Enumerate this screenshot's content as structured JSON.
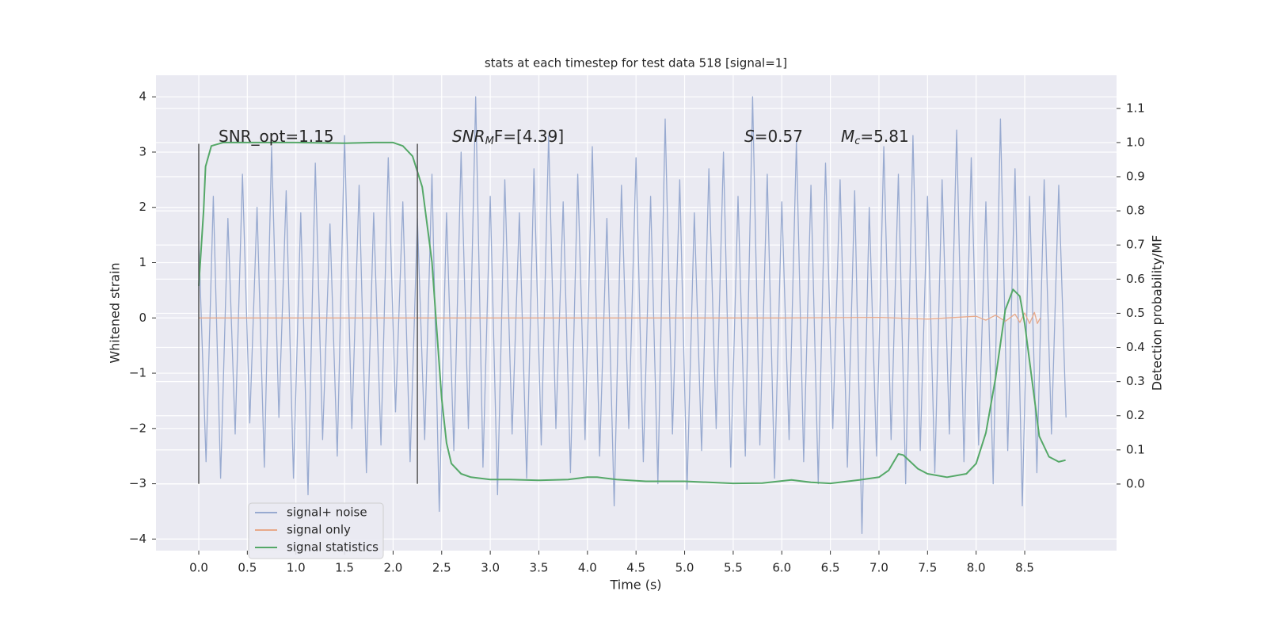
{
  "chart_data": {
    "type": "line",
    "title": "stats at each timestep for test data 518 [signal=1]",
    "xlabel": "Time (s)",
    "ylabel": "Whitened strain",
    "y2label": "Detection probability/MF",
    "xlim": [
      -0.44,
      9.445
    ],
    "ylim": [
      -4.21,
      4.39
    ],
    "y2lim": [
      -0.195,
      1.197
    ],
    "grid": true,
    "xticks": [
      {
        "value": 0,
        "label": "0.0"
      },
      {
        "value": 0.5,
        "label": "0.5"
      },
      {
        "value": 1,
        "label": "1.0"
      },
      {
        "value": 1.5,
        "label": "1.5"
      },
      {
        "value": 2,
        "label": "2.0"
      },
      {
        "value": 2.5,
        "label": "2.5"
      },
      {
        "value": 3,
        "label": "3.0"
      },
      {
        "value": 3.5,
        "label": "3.5"
      },
      {
        "value": 4,
        "label": "4.0"
      },
      {
        "value": 4.5,
        "label": "4.5"
      },
      {
        "value": 5,
        "label": "5.0"
      },
      {
        "value": 5.5,
        "label": "5.5"
      },
      {
        "value": 6,
        "label": "6.0"
      },
      {
        "value": 6.5,
        "label": "6.5"
      },
      {
        "value": 7,
        "label": "7.0"
      },
      {
        "value": 7.5,
        "label": "7.5"
      },
      {
        "value": 8,
        "label": "8.0"
      },
      {
        "value": 8.5,
        "label": "8.5"
      }
    ],
    "yticks": [
      {
        "value": -4,
        "label": "−4"
      },
      {
        "value": -3,
        "label": "−3"
      },
      {
        "value": -2,
        "label": "−2"
      },
      {
        "value": -1,
        "label": "−1"
      },
      0,
      1,
      2,
      3,
      4
    ],
    "y2ticks": [
      {
        "value": 0,
        "label": "0.0"
      },
      {
        "value": 0.1,
        "label": "0.1"
      },
      {
        "value": 0.2,
        "label": "0.2"
      },
      {
        "value": 0.3,
        "label": "0.3"
      },
      {
        "value": 0.4,
        "label": "0.4"
      },
      {
        "value": 0.5,
        "label": "0.5"
      },
      {
        "value": 0.6,
        "label": "0.6"
      },
      {
        "value": 0.7,
        "label": "0.7"
      },
      {
        "value": 0.8,
        "label": "0.8"
      },
      {
        "value": 0.9,
        "label": "0.9"
      },
      {
        "value": 1,
        "label": "1.0"
      },
      {
        "value": 1.1,
        "label": "1.1"
      }
    ],
    "series": [
      {
        "name": "signal+ noise",
        "color": "#98aad0",
        "x": [
          0,
          0.075,
          0.15,
          0.225,
          0.3,
          0.375,
          0.45,
          0.525,
          0.6,
          0.675,
          0.75,
          0.825,
          0.9,
          0.975,
          1.05,
          1.125,
          1.2,
          1.275,
          1.35,
          1.425,
          1.5,
          1.575,
          1.65,
          1.725,
          1.8,
          1.875,
          1.95,
          2.025,
          2.1,
          2.175,
          2.25,
          2.325,
          2.4,
          2.475,
          2.55,
          2.625,
          2.7,
          2.775,
          2.85,
          2.925,
          3,
          3.075,
          3.15,
          3.225,
          3.3,
          3.375,
          3.45,
          3.525,
          3.6,
          3.675,
          3.75,
          3.825,
          3.9,
          3.975,
          4.05,
          4.125,
          4.2,
          4.275,
          4.35,
          4.425,
          4.5,
          4.575,
          4.65,
          4.725,
          4.8,
          4.875,
          4.95,
          5.025,
          5.1,
          5.175,
          5.25,
          5.325,
          5.4,
          5.475,
          5.55,
          5.625,
          5.7,
          5.775,
          5.85,
          5.925,
          6,
          6.075,
          6.15,
          6.225,
          6.3,
          6.375,
          6.45,
          6.525,
          6.6,
          6.675,
          6.75,
          6.825,
          6.9,
          6.975,
          7.05,
          7.125,
          7.2,
          7.275,
          7.35,
          7.425,
          7.5,
          7.575,
          7.65,
          7.725,
          7.8,
          7.875,
          7.95,
          8.025,
          8.1,
          8.175,
          8.25,
          8.325,
          8.4,
          8.475,
          8.55,
          8.625,
          8.7,
          8.775,
          8.85,
          8.925
        ],
        "values": [
          1.4,
          -2.6,
          2.2,
          -2.9,
          1.8,
          -2.1,
          2.6,
          -1.9,
          2.0,
          -2.7,
          3.1,
          -1.8,
          2.3,
          -2.9,
          1.9,
          -3.2,
          2.8,
          -2.2,
          1.7,
          -2.5,
          3.3,
          -2.0,
          2.4,
          -2.8,
          1.9,
          -2.3,
          2.9,
          -1.7,
          2.1,
          -2.6,
          1.8,
          -2.2,
          2.6,
          -3.5,
          1.9,
          -2.4,
          3.0,
          -2.0,
          4.0,
          -2.7,
          2.2,
          -3.2,
          2.5,
          -2.1,
          1.9,
          -2.9,
          2.7,
          -2.3,
          3.3,
          -2.0,
          2.1,
          -2.8,
          2.6,
          -2.2,
          3.1,
          -2.5,
          1.8,
          -3.4,
          2.4,
          -2.0,
          2.9,
          -2.6,
          2.2,
          -3.0,
          3.6,
          -2.1,
          2.5,
          -3.1,
          1.9,
          -2.4,
          2.7,
          -2.0,
          3.0,
          -2.7,
          2.2,
          -2.5,
          4.0,
          -2.3,
          2.6,
          -2.9,
          2.1,
          -2.2,
          3.2,
          -2.6,
          2.4,
          -3.0,
          2.8,
          -2.0,
          2.5,
          -2.7,
          2.3,
          -3.9,
          2.0,
          -2.5,
          3.1,
          -2.2,
          2.6,
          -3.0,
          3.3,
          -2.4,
          2.2,
          -2.8,
          2.5,
          -2.1,
          3.4,
          -2.6,
          2.9,
          -2.3,
          2.1,
          -3.0,
          3.6,
          -2.4,
          2.7,
          -3.4,
          2.2,
          -2.8,
          2.5,
          -2.1,
          2.4,
          -1.8
        ]
      },
      {
        "name": "signal only",
        "color": "#e8a98a",
        "x": [
          0,
          2,
          4,
          6,
          7,
          7.5,
          8,
          8.1,
          8.2,
          8.3,
          8.4,
          8.45,
          8.5,
          8.55,
          8.6,
          8.63,
          8.66
        ],
        "values": [
          0,
          0,
          0,
          0,
          0.01,
          -0.02,
          0.03,
          -0.04,
          0.05,
          -0.06,
          0.07,
          -0.08,
          0.09,
          -0.1,
          0.1,
          -0.1,
          0.0
        ]
      },
      {
        "name": "signal statistics",
        "color": "#55a868",
        "axis": "y2",
        "x": [
          0,
          0.05,
          0.07,
          0.13,
          0.25,
          0.5,
          1,
          1.5,
          1.8,
          2,
          2.1,
          2.2,
          2.3,
          2.4,
          2.45,
          2.5,
          2.55,
          2.6,
          2.7,
          2.8,
          3,
          3.2,
          3.5,
          3.8,
          4,
          4.1,
          4.3,
          4.6,
          5,
          5.5,
          5.8,
          6.1,
          6.3,
          6.5,
          6.8,
          7,
          7.1,
          7.2,
          7.25,
          7.4,
          7.5,
          7.7,
          7.9,
          8,
          8.1,
          8.2,
          8.3,
          8.38,
          8.45,
          8.5,
          8.6,
          8.65,
          8.75,
          8.85,
          8.92
        ],
        "values": [
          0.58,
          0.8,
          0.93,
          0.99,
          1.0,
          1.0,
          1.0,
          0.998,
          1.0,
          1.0,
          0.99,
          0.96,
          0.87,
          0.65,
          0.45,
          0.25,
          0.12,
          0.06,
          0.03,
          0.02,
          0.013,
          0.013,
          0.011,
          0.013,
          0.02,
          0.02,
          0.013,
          0.008,
          0.008,
          0.002,
          0.003,
          0.012,
          0.005,
          0.002,
          0.012,
          0.02,
          0.04,
          0.088,
          0.085,
          0.045,
          0.03,
          0.02,
          0.03,
          0.06,
          0.15,
          0.31,
          0.51,
          0.57,
          0.55,
          0.47,
          0.25,
          0.14,
          0.08,
          0.065,
          0.07
        ]
      }
    ],
    "vlines": {
      "x": [
        0,
        2.25
      ],
      "ymin": -3,
      "ymax": 3.15,
      "color": "#555555"
    },
    "annotations": [
      {
        "text": "SNR_opt=1.15"
      },
      {
        "italic": "SNR",
        "sub": "M",
        "text": "F=[4.39]"
      },
      {
        "italic": "S",
        "text": "=0.57"
      },
      {
        "italic": "M",
        "sub": "c",
        "text": "=5.81"
      }
    ],
    "legend": "lower left"
  }
}
